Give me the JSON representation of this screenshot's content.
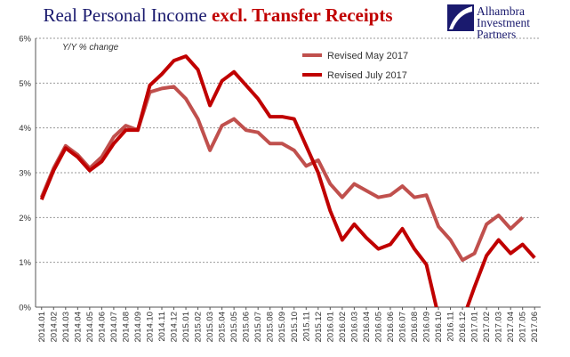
{
  "title": {
    "main": "Real Personal Income ",
    "accent": "excl. Transfer Receipts"
  },
  "logo": {
    "lines": [
      "Alhambra",
      "Investment",
      "Partners"
    ],
    "color": "#1a1a6e"
  },
  "chart_data": {
    "type": "line",
    "ylabel": "Y/Y % change",
    "ylim": [
      0,
      6
    ],
    "yticks": [
      "0%",
      "1%",
      "2%",
      "3%",
      "4%",
      "5%",
      "6%"
    ],
    "grid": true,
    "legend_position": "top-right",
    "x": [
      "2014.01",
      "2014.02",
      "2014.03",
      "2014.04",
      "2014.05",
      "2014.06",
      "2014.07",
      "2014.08",
      "2014.09",
      "2014.10",
      "2014.11",
      "2014.12",
      "2015.01",
      "2015.02",
      "2015.03",
      "2015.04",
      "2015.05",
      "2015.06",
      "2015.07",
      "2015.08",
      "2015.09",
      "2015.10",
      "2015.11",
      "2015.12",
      "2016.01",
      "2016.02",
      "2016.03",
      "2016.04",
      "2016.05",
      "2016.06",
      "2016.07",
      "2016.08",
      "2016.09",
      "2016.10",
      "2016.11",
      "2016.12",
      "2017.01",
      "2017.02",
      "2017.03",
      "2017.04",
      "2017.05",
      "2017.06"
    ],
    "series": [
      {
        "name": "Revised May 2017",
        "color": "#c0504d",
        "width": 4,
        "values": [
          2.45,
          3.1,
          3.6,
          3.4,
          3.1,
          3.35,
          3.8,
          4.05,
          3.95,
          4.8,
          4.88,
          4.92,
          4.65,
          4.2,
          3.5,
          4.05,
          4.2,
          3.95,
          3.9,
          3.65,
          3.65,
          3.5,
          3.15,
          3.28,
          2.75,
          2.45,
          2.75,
          2.6,
          2.45,
          2.5,
          2.7,
          2.45,
          2.5,
          1.8,
          1.5,
          1.05,
          1.2,
          1.85,
          2.05,
          1.75,
          2.0,
          null
        ]
      },
      {
        "name": "Revised July 2017",
        "color": "#c00000",
        "width": 4,
        "values": [
          2.4,
          3.05,
          3.55,
          3.35,
          3.05,
          3.25,
          3.65,
          3.95,
          3.95,
          4.95,
          5.2,
          5.5,
          5.6,
          5.3,
          4.5,
          5.05,
          5.25,
          4.95,
          4.65,
          4.25,
          4.25,
          4.2,
          3.6,
          3.0,
          2.15,
          1.5,
          1.85,
          1.55,
          1.3,
          1.4,
          1.75,
          1.3,
          0.95,
          -0.2,
          -0.6,
          -0.3,
          0.45,
          1.15,
          1.5,
          1.2,
          1.4,
          1.1
        ]
      }
    ]
  }
}
